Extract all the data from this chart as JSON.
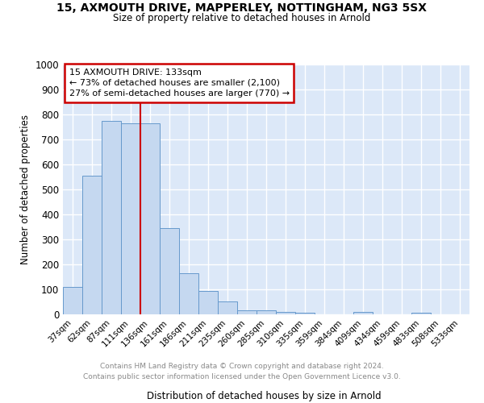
{
  "title1": "15, AXMOUTH DRIVE, MAPPERLEY, NOTTINGHAM, NG3 5SX",
  "title2": "Size of property relative to detached houses in Arnold",
  "xlabel": "Distribution of detached houses by size in Arnold",
  "ylabel": "Number of detached properties",
  "bar_labels": [
    "37sqm",
    "62sqm",
    "87sqm",
    "111sqm",
    "136sqm",
    "161sqm",
    "186sqm",
    "211sqm",
    "235sqm",
    "260sqm",
    "285sqm",
    "310sqm",
    "335sqm",
    "359sqm",
    "384sqm",
    "409sqm",
    "434sqm",
    "459sqm",
    "483sqm",
    "508sqm",
    "533sqm"
  ],
  "bar_heights": [
    110,
    555,
    775,
    765,
    765,
    345,
    165,
    95,
    52,
    15,
    15,
    10,
    5,
    0,
    0,
    10,
    0,
    0,
    5,
    0,
    0
  ],
  "bar_color": "#c5d8f0",
  "bar_edge_color": "#6699cc",
  "property_bar_index": 4,
  "annotation_title": "15 AXMOUTH DRIVE: 133sqm",
  "annotation_line1": "← 73% of detached houses are smaller (2,100)",
  "annotation_line2": "27% of semi-detached houses are larger (770) →",
  "red_color": "#cc0000",
  "ylim": [
    0,
    1000
  ],
  "yticks": [
    0,
    100,
    200,
    300,
    400,
    500,
    600,
    700,
    800,
    900,
    1000
  ],
  "plot_bg_color": "#dce8f8",
  "grid_color": "#ffffff",
  "fig_bg_color": "#ffffff",
  "footer1": "Contains HM Land Registry data © Crown copyright and database right 2024.",
  "footer2": "Contains public sector information licensed under the Open Government Licence v3.0."
}
